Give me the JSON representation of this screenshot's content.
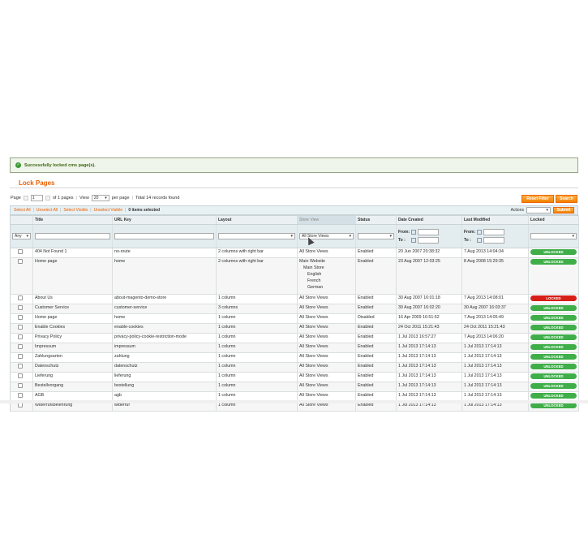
{
  "message": "Successfully locked cms page(s).",
  "page_title": "Lock Pages",
  "pager": {
    "page_label": "Page",
    "page_value": "1",
    "of_pages": "of 1 pages",
    "view_label": "View",
    "view_value": "20",
    "per_page": "per page",
    "total": "Total 14 records found"
  },
  "buttons": {
    "reset": "Reset Filter",
    "search": "Search",
    "submit": "Submit"
  },
  "massaction": {
    "select_all": "Select All",
    "unselect_all": "Unselect All",
    "select_visible": "Select Visible",
    "unselect_visible": "Unselect Visible",
    "selected": "0 items selected",
    "actions_label": "Actions"
  },
  "columns": [
    "Title",
    "URL Key",
    "Layout",
    "Store View",
    "Status",
    "Date Created",
    "Last Modified",
    "Locked"
  ],
  "filters": {
    "any": "Any",
    "store_view": "All Store Views",
    "from": "From:",
    "to": "To :"
  },
  "rows": [
    {
      "title": "404 Not Found 1",
      "url": "no-route",
      "layout": "2 columns with right bar",
      "store": "All Store Views",
      "status": "Enabled",
      "created": "20 Jun 2007 20:38:32",
      "modified": "7 Aug 2013 14:04:34",
      "locked": "UNLOCKED"
    },
    {
      "title": "Home page",
      "url": "home",
      "layout": "2 columns with right bar",
      "store": "Main Website",
      "store_tree": [
        "Main Store",
        "English",
        "French",
        "German"
      ],
      "status": "Enabled",
      "created": "23 Aug 2007 12:03:25",
      "modified": "8 Aug 2008 15:29:35",
      "locked": "UNLOCKED"
    },
    {
      "title": "About Us",
      "url": "about-magento-demo-store",
      "layout": "1 column",
      "store": "All Store Views",
      "status": "Enabled",
      "created": "30 Aug 2007 16:01:18",
      "modified": "7 Aug 2013 14:08:01",
      "locked": "LOCKED"
    },
    {
      "title": "Customer Service",
      "url": "customer-service",
      "layout": "3 columns",
      "store": "All Store Views",
      "status": "Enabled",
      "created": "30 Aug 2007 16:02:20",
      "modified": "30 Aug 2007 16:03:37",
      "locked": "UNLOCKED"
    },
    {
      "title": "Home page",
      "url": "home",
      "layout": "1 column",
      "store": "All Store Views",
      "status": "Disabled",
      "created": "16 Apr 2009 16:51:52",
      "modified": "7 Aug 2013 14:05:49",
      "locked": "UNLOCKED"
    },
    {
      "title": "Enable Cookies",
      "url": "enable-cookies",
      "layout": "1 column",
      "store": "All Store Views",
      "status": "Enabled",
      "created": "24 Oct 2011 15:21:43",
      "modified": "24 Oct 2011 15:21:43",
      "locked": "UNLOCKED"
    },
    {
      "title": "Privacy Policy",
      "url": "privacy-policy-cookie-restriction-mode",
      "layout": "1 column",
      "store": "All Store Views",
      "status": "Enabled",
      "created": "1 Jul 2013 16:57:27",
      "modified": "7 Aug 2013 14:06:20",
      "locked": "UNLOCKED"
    },
    {
      "title": "Impressum",
      "url": "impressum",
      "layout": "1 column",
      "store": "All Store Views",
      "status": "Enabled",
      "created": "1 Jul 2013 17:14:13",
      "modified": "1 Jul 2013 17:14:13",
      "locked": "UNLOCKED"
    },
    {
      "title": "Zahlungsarten",
      "url": "zahlung",
      "layout": "1 column",
      "store": "All Store Views",
      "status": "Enabled",
      "created": "1 Jul 2013 17:14:13",
      "modified": "1 Jul 2013 17:14:13",
      "locked": "UNLOCKED"
    },
    {
      "title": "Datenschutz",
      "url": "datenschutz",
      "layout": "1 column",
      "store": "All Store Views",
      "status": "Enabled",
      "created": "1 Jul 2013 17:14:13",
      "modified": "1 Jul 2013 17:14:13",
      "locked": "UNLOCKED"
    },
    {
      "title": "Lieferung",
      "url": "lieferung",
      "layout": "1 column",
      "store": "All Store Views",
      "status": "Enabled",
      "created": "1 Jul 2013 17:14:13",
      "modified": "1 Jul 2013 17:14:13",
      "locked": "UNLOCKED"
    },
    {
      "title": "Bestellvorgang",
      "url": "bestellung",
      "layout": "1 column",
      "store": "All Store Views",
      "status": "Enabled",
      "created": "1 Jul 2013 17:14:13",
      "modified": "1 Jul 2013 17:14:13",
      "locked": "UNLOCKED"
    },
    {
      "title": "AGB",
      "url": "agb",
      "layout": "1 column",
      "store": "All Store Views",
      "status": "Enabled",
      "created": "1 Jul 2013 17:14:13",
      "modified": "1 Jul 2013 17:14:13",
      "locked": "UNLOCKED"
    },
    {
      "title": "Widerrufsbelehrung",
      "url": "widerruf",
      "layout": "1 column",
      "store": "All Store Views",
      "status": "Enabled",
      "created": "1 Jul 2013 17:14:13",
      "modified": "1 Jul 2013 17:14:13",
      "locked": "UNLOCKED"
    }
  ],
  "colors": {
    "accent": "#eb5e00",
    "unlocked": "#3fae49",
    "locked": "#d81f17",
    "success": "#3d9a34"
  }
}
